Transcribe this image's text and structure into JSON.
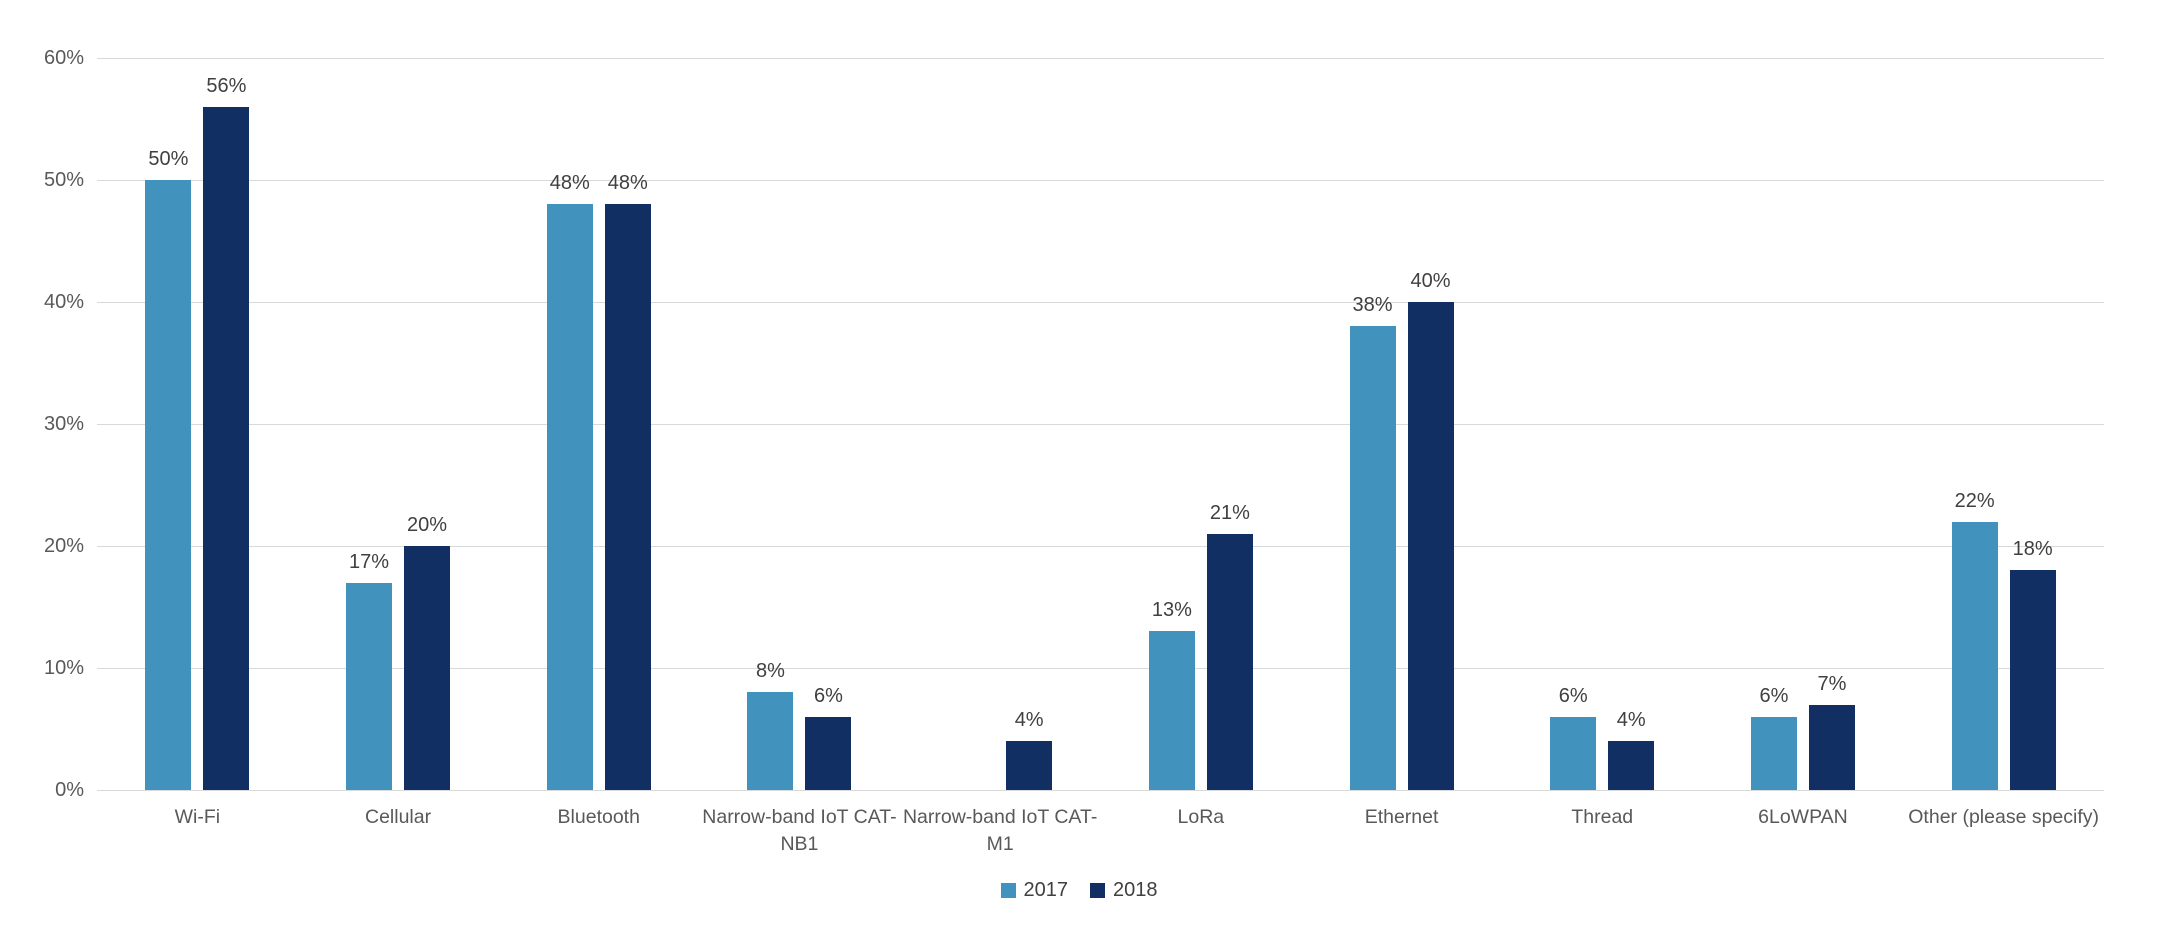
{
  "chart_data": {
    "type": "bar",
    "categories": [
      "Wi-Fi",
      "Cellular",
      "Bluetooth",
      "Narrow-band IoT CAT-\nNB1",
      "Narrow-band IoT CAT-\nM1",
      "LoRa",
      "Ethernet",
      "Thread",
      "6LoWPAN",
      "Other (please specify)"
    ],
    "series": [
      {
        "name": "2017",
        "color": "#4192BC",
        "values": [
          50,
          17,
          48,
          8,
          null,
          13,
          38,
          6,
          6,
          22
        ]
      },
      {
        "name": "2018",
        "color": "#122F63",
        "values": [
          56,
          20,
          48,
          6,
          4,
          21,
          40,
          4,
          7,
          18
        ]
      }
    ],
    "value_label_suffix": "%",
    "ylim": [
      0,
      60
    ],
    "ytick_step": 10,
    "ytick_suffix": "%",
    "grid": true,
    "legend_position": "bottom",
    "colors": {
      "gridline": "#D9D9D9",
      "axis_text": "#595959",
      "value_label_text": "#404040",
      "background": "#FFFFFF"
    }
  }
}
